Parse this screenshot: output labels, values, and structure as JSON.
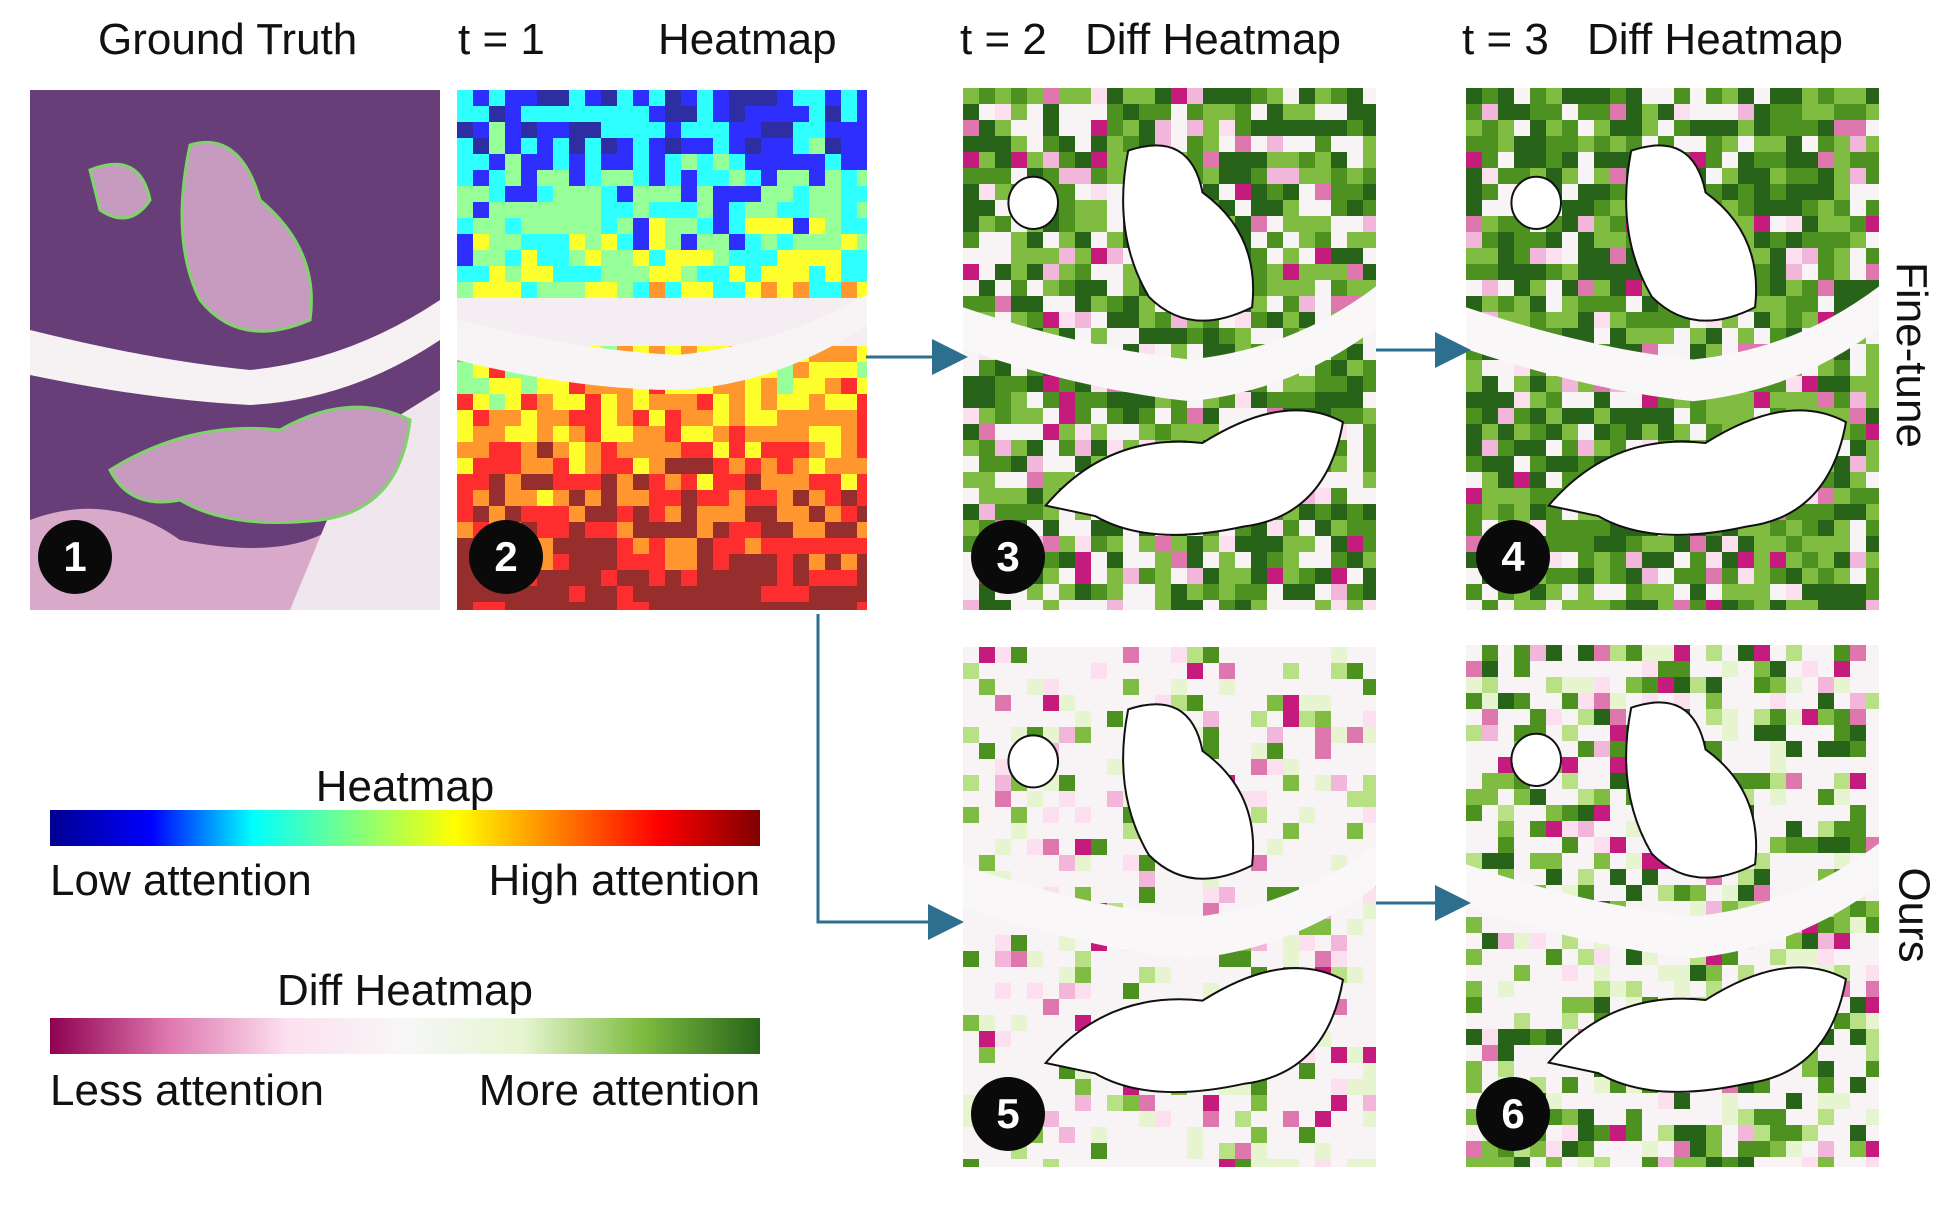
{
  "headers": {
    "ground_truth": "Ground Truth",
    "t1": "t = 1",
    "heatmap": "Heatmap",
    "t2": "t = 2",
    "t2_diff": "Diff Heatmap",
    "t3": "t = 3",
    "t3_diff": "Diff Heatmap"
  },
  "row_labels": {
    "finetune": "Fine-tune",
    "ours": "Ours"
  },
  "badges": [
    "1",
    "2",
    "3",
    "4",
    "5",
    "6"
  ],
  "legend": {
    "heatmap": {
      "title": "Heatmap",
      "low": "Low attention",
      "high": "High attention",
      "colors": [
        "#00008f",
        "#0000ff",
        "#00ffff",
        "#80ff80",
        "#ffff00",
        "#ff8000",
        "#ff0000",
        "#800000"
      ]
    },
    "diff": {
      "title": "Diff Heatmap",
      "low": "Less attention",
      "high": "More attention",
      "colors": [
        "#8e0152",
        "#de77ae",
        "#fde0ef",
        "#f7f7f7",
        "#e6f5d0",
        "#7fbc41",
        "#276419"
      ]
    }
  },
  "colors": {
    "arrow": "#2e6e8e",
    "tissue": "#6b3a78",
    "contour_gt": "#7fd36a",
    "contour": "#111111"
  }
}
